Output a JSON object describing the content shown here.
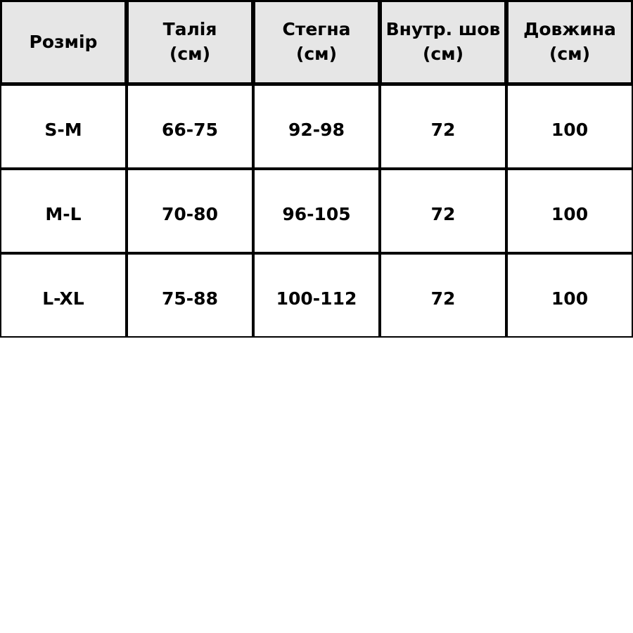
{
  "table": {
    "headers": [
      "Розмір",
      "Талія\n(см)",
      "Стегна\n(см)",
      "Внутр. шов\n(см)",
      "Довжина\n(см)"
    ],
    "rows": [
      [
        "S-M",
        "66-75",
        "92-98",
        "72",
        "100"
      ],
      [
        "M-L",
        "70-80",
        "96-105",
        "72",
        "100"
      ],
      [
        "L-XL",
        "75-88",
        "100-112",
        "72",
        "100"
      ]
    ],
    "header_background": "#e6e6e6"
  }
}
